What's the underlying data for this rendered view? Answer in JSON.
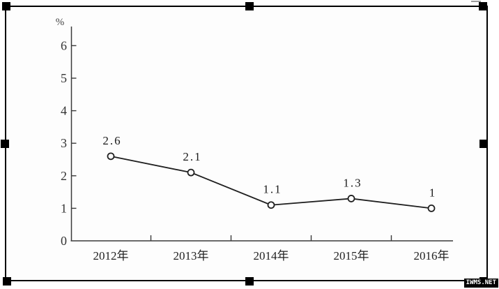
{
  "watermark": {
    "text": "iwms.net"
  },
  "colors": {
    "selection_handle": "#000000",
    "frame_border": "#000000",
    "line": "#1f1f1f",
    "axis": "#3a3a3a",
    "marker_fill": "#ffffff",
    "watermark_bg": "#000000",
    "watermark_fg": "#ffffff"
  },
  "chart_data": {
    "type": "line",
    "title": "",
    "xlabel": "",
    "ylabel": "%",
    "categories": [
      "2012年",
      "2013年",
      "2014年",
      "2015年",
      "2016年"
    ],
    "values": [
      2.6,
      2.1,
      1.1,
      1.3,
      1
    ],
    "point_labels": [
      "2.6",
      "2.1",
      "1.1",
      "1.3",
      "1"
    ],
    "y_ticks": [
      0,
      1,
      2,
      3,
      4,
      5,
      6
    ],
    "ylim": [
      0,
      6.6
    ],
    "grid": false,
    "legend": null,
    "marker": "open-circle"
  }
}
